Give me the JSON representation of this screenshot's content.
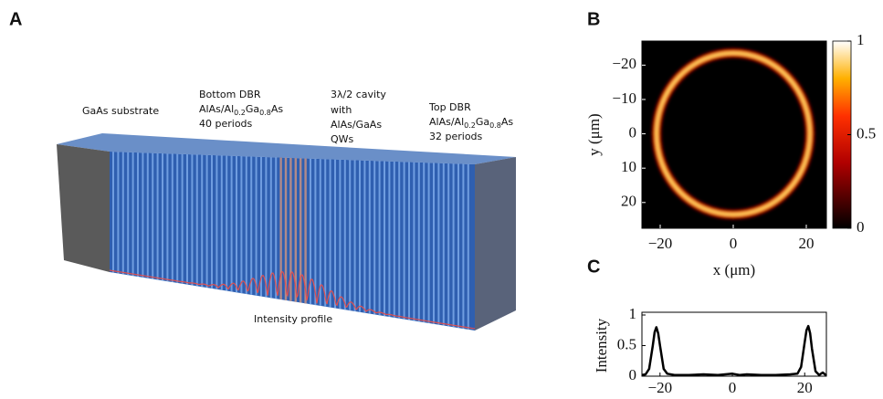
{
  "panel_a": {
    "label": "A",
    "substrate": "GaAs substrate",
    "bottom_dbr": {
      "title": "Bottom DBR",
      "material": [
        "AlAs/Al",
        "0.2",
        "Ga",
        "0.8",
        "As"
      ],
      "periods": "40 periods"
    },
    "cavity": [
      "3λ/2 cavity",
      "with",
      "AlAs/GaAs",
      "QWs"
    ],
    "top_dbr": {
      "title": "Top DBR",
      "material": [
        "AlAs/Al",
        "0.2",
        "Ga",
        "0.8",
        "As"
      ],
      "periods": "32 periods"
    },
    "intensity": "Intensity profile"
  },
  "chart_data": [
    {
      "type": "heatmap",
      "label": "B",
      "xlabel": "x (μm)",
      "ylabel": "y (μm)",
      "xlim": [
        -25,
        25.5
      ],
      "ylim": [
        -27,
        27.5
      ],
      "y_reversed": true,
      "xticks": [
        {
          "value": -20,
          "label": "−20"
        },
        0,
        20
      ],
      "yticks": [
        {
          "value": -20,
          "label": "−20"
        },
        {
          "value": -10,
          "label": "−10"
        },
        0,
        10,
        20
      ],
      "ring_center_x": 0,
      "ring_center_y": 0,
      "ring_radius_x": 21,
      "ring_radius_y": 23.5,
      "colormap": "hot",
      "clim": [
        0,
        1
      ],
      "cticks": [
        0,
        0.5,
        1
      ]
    },
    {
      "type": "line",
      "label": "C",
      "ylabel": "Intensity",
      "color": "#000000",
      "xlim": [
        -25,
        26
      ],
      "ylim": [
        0,
        1
      ],
      "xticks": [
        {
          "value": -20,
          "label": "−20"
        },
        0,
        20
      ],
      "yticks": [
        0,
        0.5,
        1
      ],
      "x": [
        -25,
        -24,
        -23,
        -22,
        -21.5,
        -21,
        -20.5,
        -20,
        -19,
        -18,
        -16,
        -12,
        -8,
        -4,
        -2,
        0,
        2,
        4,
        8,
        12,
        16,
        18,
        19,
        20,
        20.5,
        21,
        21.5,
        22,
        23,
        24,
        25,
        26
      ],
      "values": [
        0.02,
        0.03,
        0.12,
        0.5,
        0.72,
        0.8,
        0.7,
        0.5,
        0.12,
        0.04,
        0.02,
        0.02,
        0.03,
        0.02,
        0.03,
        0.04,
        0.02,
        0.03,
        0.02,
        0.02,
        0.03,
        0.04,
        0.15,
        0.55,
        0.75,
        0.82,
        0.7,
        0.45,
        0.08,
        0.02,
        0.06,
        0.01
      ]
    }
  ]
}
